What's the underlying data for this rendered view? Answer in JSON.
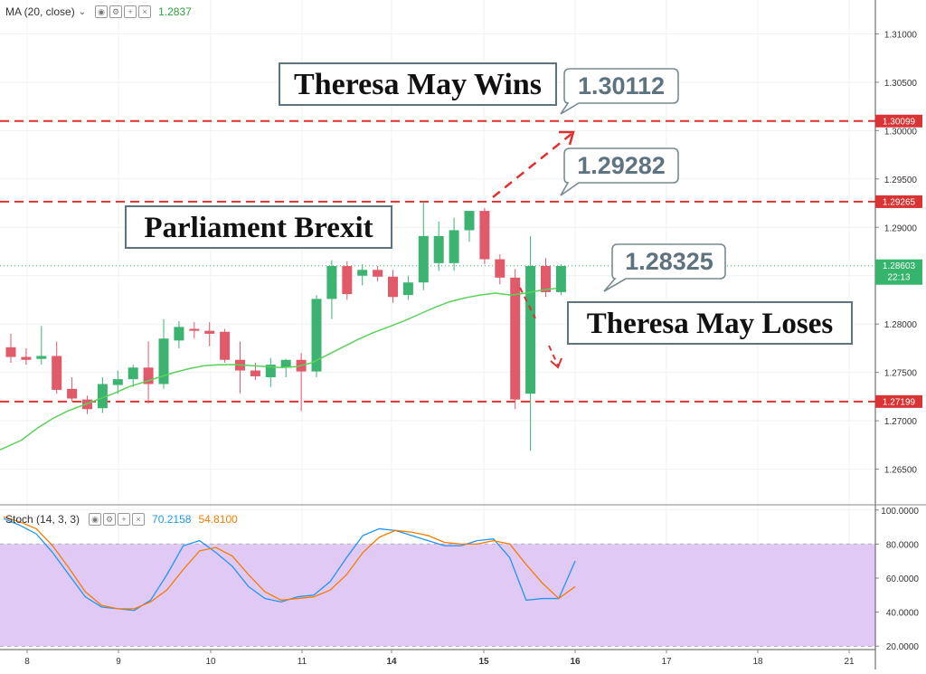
{
  "indicators": {
    "ma": {
      "label": "MA (20, close)",
      "value": "1.2837",
      "value_color": "#2e9e3e",
      "icons": [
        "eye-icon",
        "gear-icon",
        "plus-icon",
        "close-icon"
      ]
    },
    "stoch": {
      "label": "Stoch (14, 3, 3)",
      "k_value": "70.2158",
      "d_value": "54.8100",
      "k_color": "#2196f3",
      "d_color": "#f57c00",
      "icons": [
        "eye-icon",
        "gear-icon",
        "plus-icon",
        "close-icon"
      ]
    }
  },
  "annotations": {
    "title_wins": "Theresa May Wins",
    "title_brexit": "Parliament Brexit",
    "title_loses": "Theresa May Loses",
    "callout_1": "1.30112",
    "callout_2": "1.29282",
    "callout_3": "1.28325"
  },
  "price_tags": {
    "resistance_2": "1.30099",
    "resistance_1": "1.29265",
    "current": "1.28603",
    "countdown": "22:13",
    "support": "1.27199"
  },
  "colors": {
    "up": "#3cb371",
    "down": "#e05a6a",
    "level_line": "#e03030",
    "ma_line": "#5ad25a",
    "stoch_band": "#e1c9f5",
    "callout_text": "#5e7380",
    "price_tag_bg": "#d93333",
    "current_tag_bg": "#35b46b"
  },
  "chart_data": [
    {
      "type": "candlestick",
      "ylim": [
        1.2615,
        1.3135
      ],
      "y_ticks": [
        1.265,
        1.27,
        1.275,
        1.28,
        1.285,
        1.29,
        1.295,
        1.3,
        1.305,
        1.31
      ],
      "y_tick_labels": [
        "1.26500",
        "1.27000",
        "1.27500",
        "1.28000",
        "1.28500",
        "1.29000",
        "1.29500",
        "1.30000",
        "1.30500",
        "1.31000"
      ],
      "x_tick_labels": [
        "8",
        "9",
        "10",
        "11",
        "14",
        "15",
        "16",
        "17",
        "18",
        "21"
      ],
      "candles": [
        {
          "o": 1.2776,
          "h": 1.279,
          "l": 1.276,
          "c": 1.2766
        },
        {
          "o": 1.2766,
          "h": 1.2775,
          "l": 1.2758,
          "c": 1.2763
        },
        {
          "o": 1.2764,
          "h": 1.2798,
          "l": 1.2758,
          "c": 1.2767
        },
        {
          "o": 1.2767,
          "h": 1.2782,
          "l": 1.2728,
          "c": 1.2732
        },
        {
          "o": 1.2733,
          "h": 1.2745,
          "l": 1.272,
          "c": 1.2723
        },
        {
          "o": 1.2722,
          "h": 1.2726,
          "l": 1.2707,
          "c": 1.2712
        },
        {
          "o": 1.2713,
          "h": 1.2745,
          "l": 1.2708,
          "c": 1.2738
        },
        {
          "o": 1.2737,
          "h": 1.2752,
          "l": 1.2728,
          "c": 1.2743
        },
        {
          "o": 1.2743,
          "h": 1.2758,
          "l": 1.2735,
          "c": 1.2755
        },
        {
          "o": 1.2755,
          "h": 1.2782,
          "l": 1.2718,
          "c": 1.2738
        },
        {
          "o": 1.2738,
          "h": 1.2805,
          "l": 1.2733,
          "c": 1.2785
        },
        {
          "o": 1.2783,
          "h": 1.2803,
          "l": 1.2775,
          "c": 1.2797
        },
        {
          "o": 1.2795,
          "h": 1.2802,
          "l": 1.2785,
          "c": 1.2793
        },
        {
          "o": 1.2793,
          "h": 1.2802,
          "l": 1.2777,
          "c": 1.279
        },
        {
          "o": 1.2792,
          "h": 1.2795,
          "l": 1.276,
          "c": 1.2763
        },
        {
          "o": 1.2763,
          "h": 1.2782,
          "l": 1.2728,
          "c": 1.2752
        },
        {
          "o": 1.2752,
          "h": 1.276,
          "l": 1.2742,
          "c": 1.2746
        },
        {
          "o": 1.2745,
          "h": 1.2765,
          "l": 1.2735,
          "c": 1.2758
        },
        {
          "o": 1.2755,
          "h": 1.2764,
          "l": 1.2745,
          "c": 1.2763
        },
        {
          "o": 1.2763,
          "h": 1.277,
          "l": 1.271,
          "c": 1.2751
        },
        {
          "o": 1.2751,
          "h": 1.283,
          "l": 1.2745,
          "c": 1.2826
        },
        {
          "o": 1.2826,
          "h": 1.2866,
          "l": 1.2805,
          "c": 1.286
        },
        {
          "o": 1.286,
          "h": 1.2865,
          "l": 1.2825,
          "c": 1.2831
        },
        {
          "o": 1.285,
          "h": 1.2862,
          "l": 1.284,
          "c": 1.2856
        },
        {
          "o": 1.2856,
          "h": 1.286,
          "l": 1.2844,
          "c": 1.2849
        },
        {
          "o": 1.2849,
          "h": 1.2856,
          "l": 1.2822,
          "c": 1.2828
        },
        {
          "o": 1.283,
          "h": 1.285,
          "l": 1.2825,
          "c": 1.2843
        },
        {
          "o": 1.2843,
          "h": 1.2927,
          "l": 1.2835,
          "c": 1.2891
        },
        {
          "o": 1.2863,
          "h": 1.2906,
          "l": 1.2855,
          "c": 1.2891
        },
        {
          "o": 1.2863,
          "h": 1.291,
          "l": 1.2855,
          "c": 1.2897
        },
        {
          "o": 1.2897,
          "h": 1.2917,
          "l": 1.2885,
          "c": 1.2917
        },
        {
          "o": 1.2917,
          "h": 1.292,
          "l": 1.2862,
          "c": 1.2867
        },
        {
          "o": 1.2867,
          "h": 1.2872,
          "l": 1.2841,
          "c": 1.2848
        },
        {
          "o": 1.2848,
          "h": 1.2857,
          "l": 1.2712,
          "c": 1.2722
        },
        {
          "o": 1.2728,
          "h": 1.2891,
          "l": 1.2669,
          "c": 1.286
        },
        {
          "o": 1.286,
          "h": 1.2868,
          "l": 1.2828,
          "c": 1.2833
        },
        {
          "o": 1.2833,
          "h": 1.2862,
          "l": 1.283,
          "c": 1.286
        }
      ],
      "ma20": [
        1.267,
        1.268,
        1.2692,
        1.2702,
        1.271,
        1.2716,
        1.2722,
        1.2728,
        1.2735,
        1.274,
        1.2745,
        1.275,
        1.2754,
        1.2757,
        1.2758,
        1.2758,
        1.2757,
        1.2756,
        1.2755,
        1.2756,
        1.276,
        1.2768,
        1.2776,
        1.2784,
        1.2791,
        1.2797,
        1.2803,
        1.281,
        1.2817,
        1.2823,
        1.2827,
        1.283,
        1.2832,
        1.283,
        1.2832,
        1.2835,
        1.2837
      ],
      "levels": [
        1.30099,
        1.29265,
        1.27199
      ],
      "current_price": 1.28603
    },
    {
      "type": "line",
      "title": "Stoch (14, 3, 3)",
      "ylim": [
        18,
        102
      ],
      "y_ticks": [
        20,
        40,
        60,
        80,
        100
      ],
      "y_tick_labels": [
        "20.0000",
        "40.0000",
        "60.0000",
        "80.0000",
        "100.0000"
      ],
      "band": [
        20,
        80
      ],
      "series": [
        {
          "name": "%K",
          "values": [
            95,
            91,
            86,
            75,
            62,
            49,
            43,
            42,
            41,
            47,
            62,
            79,
            82,
            75,
            67,
            55,
            48,
            46,
            49,
            50,
            58,
            72,
            85,
            89,
            88,
            85,
            82,
            79,
            79,
            82,
            83,
            72,
            47,
            48,
            48,
            70
          ]
        },
        {
          "name": "%D",
          "values": [
            96,
            93,
            89,
            79,
            66,
            52,
            44,
            42,
            42,
            46,
            53,
            65,
            76,
            78,
            73,
            62,
            52,
            47,
            48,
            49,
            53,
            62,
            75,
            84,
            88,
            87,
            85,
            81,
            80,
            80,
            82,
            80,
            68,
            57,
            48,
            55
          ]
        }
      ]
    }
  ]
}
